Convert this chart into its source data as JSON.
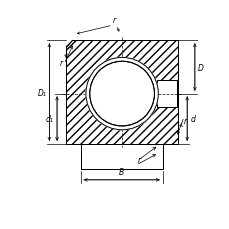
{
  "line_color": "#000000",
  "labels": {
    "B": "B",
    "D": "D",
    "d": "d",
    "D1": "D₁",
    "d1": "d₁",
    "r1": "r",
    "r2": "r",
    "r3": "r",
    "r4": "r"
  },
  "figsize": [
    2.3,
    2.3
  ],
  "dpi": 100
}
